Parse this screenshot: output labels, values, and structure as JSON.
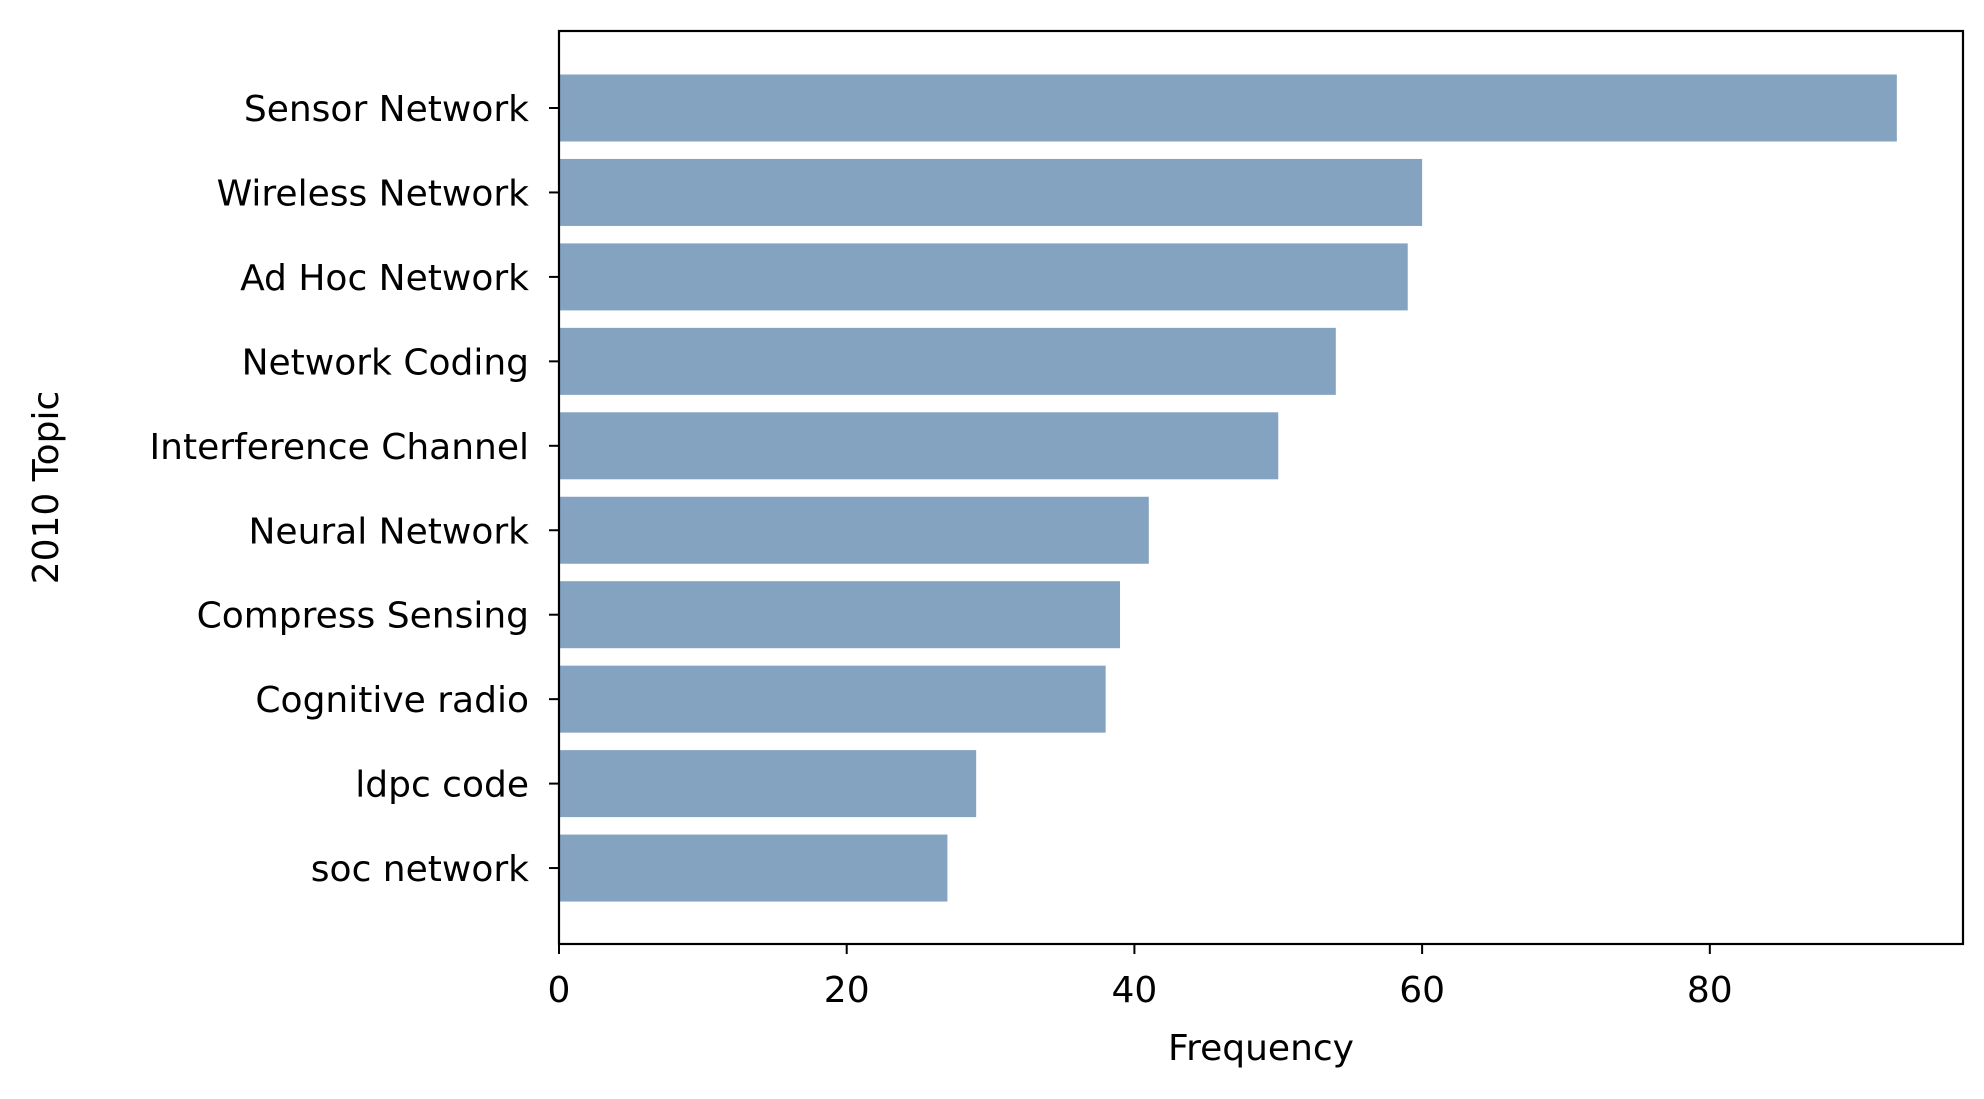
{
  "chart_data": {
    "type": "bar",
    "orientation": "horizontal",
    "title": "",
    "xlabel": "Frequency",
    "ylabel": "2010 Topic",
    "xlim": [
      0,
      97.6
    ],
    "xticks": [
      0,
      20,
      40,
      60,
      80
    ],
    "grid": false,
    "legend": "none",
    "bar_color": "#84a3c1",
    "categories": [
      "Sensor Network",
      "Wireless Network",
      "Ad Hoc Network",
      "Network Coding",
      "Interference Channel",
      "Neural Network",
      "Compress Sensing",
      "Cognitive radio",
      "ldpc code",
      "soc network"
    ],
    "values": [
      93,
      60,
      59,
      54,
      50,
      41,
      39,
      38,
      29,
      27
    ]
  }
}
